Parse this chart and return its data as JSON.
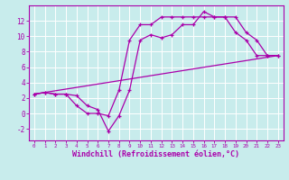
{
  "background_color": "#c8ecec",
  "grid_color": "#ffffff",
  "line_color": "#aa00aa",
  "xlim": [
    -0.5,
    23.5
  ],
  "ylim": [
    -3.5,
    14.0
  ],
  "xlabel": "Windchill (Refroidissement éolien,°C)",
  "xlabel_fontsize": 6.0,
  "xticks": [
    0,
    1,
    2,
    3,
    4,
    5,
    6,
    7,
    8,
    9,
    10,
    11,
    12,
    13,
    14,
    15,
    16,
    17,
    18,
    19,
    20,
    21,
    22,
    23
  ],
  "yticks": [
    -2,
    0,
    2,
    4,
    6,
    8,
    10,
    12
  ],
  "line1_x": [
    0,
    1,
    2,
    3,
    4,
    5,
    6,
    7,
    8,
    9,
    10,
    11,
    12,
    13,
    14,
    15,
    16,
    17,
    18,
    19,
    20,
    21,
    22,
    23
  ],
  "line1_y": [
    2.5,
    2.7,
    2.5,
    2.5,
    2.3,
    1.0,
    0.5,
    -2.3,
    -0.3,
    3.0,
    9.5,
    10.2,
    9.8,
    10.2,
    11.5,
    11.5,
    13.2,
    12.5,
    12.5,
    12.5,
    10.5,
    9.5,
    7.5,
    7.5
  ],
  "line2_x": [
    0,
    1,
    2,
    3,
    4,
    5,
    6,
    7,
    8,
    9,
    10,
    11,
    12,
    13,
    14,
    15,
    16,
    17,
    18,
    19,
    20,
    21,
    22,
    23
  ],
  "line2_y": [
    2.5,
    2.7,
    2.5,
    2.5,
    1.0,
    0.0,
    0.0,
    -0.3,
    3.0,
    9.5,
    11.5,
    11.5,
    12.5,
    12.5,
    12.5,
    12.5,
    12.5,
    12.5,
    12.5,
    10.5,
    9.5,
    7.5,
    7.5,
    7.5
  ],
  "line3_x": [
    0,
    23
  ],
  "line3_y": [
    2.5,
    7.5
  ]
}
